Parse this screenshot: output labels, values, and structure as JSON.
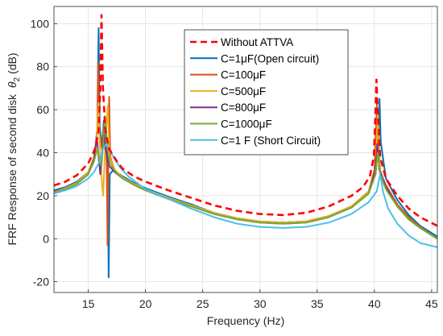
{
  "chart_data": {
    "type": "line",
    "xlabel": "Frequency (Hz)",
    "ylabel": "FRF Response of second disk",
    "ylabel_symbol": "θ",
    "ylabel_sub": "2",
    "ylabel_unit": "(dB)",
    "xlim": [
      12,
      45.5
    ],
    "ylim": [
      -25,
      108
    ],
    "xticks": [
      "15",
      "20",
      "25",
      "30",
      "35",
      "40",
      "45"
    ],
    "yticks": [
      "-20",
      "0",
      "20",
      "40",
      "60",
      "80",
      "100"
    ],
    "grid": true,
    "legend_position": "top-right",
    "series": [
      {
        "name": "Without ATTVA",
        "color": "#ff0000",
        "dashed": true,
        "points": [
          [
            12,
            24.8
          ],
          [
            13,
            26.5
          ],
          [
            14,
            29.5
          ],
          [
            15,
            35
          ],
          [
            15.6,
            42
          ],
          [
            15.9,
            50
          ],
          [
            16.05,
            70
          ],
          [
            16.15,
            104
          ],
          [
            16.28,
            70
          ],
          [
            16.5,
            50
          ],
          [
            16.8,
            42
          ],
          [
            17.5,
            36
          ],
          [
            18,
            32.5
          ],
          [
            19,
            29
          ],
          [
            20,
            26.5
          ],
          [
            22,
            22.5
          ],
          [
            24,
            19
          ],
          [
            26,
            15.5
          ],
          [
            28,
            13
          ],
          [
            30,
            11.5
          ],
          [
            32,
            11
          ],
          [
            34,
            12
          ],
          [
            36,
            15
          ],
          [
            38,
            20
          ],
          [
            39,
            24
          ],
          [
            39.6,
            29
          ],
          [
            39.95,
            38
          ],
          [
            40.1,
            60
          ],
          [
            40.18,
            74
          ],
          [
            40.28,
            60
          ],
          [
            40.5,
            38
          ],
          [
            41,
            28
          ],
          [
            42,
            20
          ],
          [
            43,
            14
          ],
          [
            44,
            10
          ],
          [
            45.5,
            6
          ]
        ]
      },
      {
        "name": "C=1μF(Open circuit)",
        "color": "#0072bd",
        "dashed": false,
        "points": [
          [
            12,
            22.5
          ],
          [
            13,
            24
          ],
          [
            14,
            26.5
          ],
          [
            15,
            31
          ],
          [
            15.5,
            37
          ],
          [
            15.8,
            52
          ],
          [
            15.9,
            98
          ],
          [
            16.0,
            52
          ],
          [
            16.2,
            44
          ],
          [
            16.4,
            46
          ],
          [
            16.55,
            52
          ],
          [
            16.7,
            30
          ],
          [
            16.78,
            -18
          ],
          [
            16.88,
            30
          ],
          [
            17.2,
            32
          ],
          [
            18,
            29
          ],
          [
            19,
            26
          ],
          [
            20,
            23.5
          ],
          [
            22,
            19.5
          ],
          [
            24,
            16
          ],
          [
            26,
            12
          ],
          [
            28,
            9.5
          ],
          [
            30,
            8
          ],
          [
            32,
            7.5
          ],
          [
            34,
            8
          ],
          [
            36,
            10.5
          ],
          [
            38,
            15
          ],
          [
            39.5,
            22
          ],
          [
            40.1,
            30
          ],
          [
            40.35,
            45
          ],
          [
            40.45,
            65
          ],
          [
            40.55,
            45
          ],
          [
            41,
            28
          ],
          [
            42,
            18
          ],
          [
            43,
            11
          ],
          [
            44,
            6
          ],
          [
            45.5,
            1
          ]
        ]
      },
      {
        "name": "C=100μF",
        "color": "#d95319",
        "dashed": false,
        "points": [
          [
            12,
            21.8
          ],
          [
            13,
            23.5
          ],
          [
            14,
            26
          ],
          [
            15,
            30.5
          ],
          [
            15.5,
            36
          ],
          [
            15.78,
            50
          ],
          [
            15.85,
            82
          ],
          [
            15.95,
            50
          ],
          [
            16.2,
            42
          ],
          [
            16.4,
            44
          ],
          [
            16.55,
            48
          ],
          [
            16.62,
            30
          ],
          [
            16.68,
            -3
          ],
          [
            16.75,
            30
          ],
          [
            16.82,
            66
          ],
          [
            16.92,
            38
          ],
          [
            17.3,
            32
          ],
          [
            18,
            28.5
          ],
          [
            19,
            25.5
          ],
          [
            20,
            23
          ],
          [
            22,
            19
          ],
          [
            24,
            15.5
          ],
          [
            26,
            12
          ],
          [
            28,
            9.5
          ],
          [
            30,
            8
          ],
          [
            32,
            7.5
          ],
          [
            34,
            8
          ],
          [
            36,
            10.5
          ],
          [
            38,
            15
          ],
          [
            39.5,
            22
          ],
          [
            40.0,
            32
          ],
          [
            40.22,
            63
          ],
          [
            40.42,
            32
          ],
          [
            41,
            25
          ],
          [
            42,
            16
          ],
          [
            43,
            10
          ],
          [
            44,
            5.5
          ],
          [
            45.5,
            0
          ]
        ]
      },
      {
        "name": "C=500μF",
        "color": "#edb120",
        "dashed": false,
        "points": [
          [
            12,
            21.5
          ],
          [
            13,
            23.5
          ],
          [
            14,
            26
          ],
          [
            15,
            31
          ],
          [
            15.5,
            38
          ],
          [
            15.75,
            48
          ],
          [
            15.88,
            63
          ],
          [
            16.0,
            45
          ],
          [
            16.2,
            25
          ],
          [
            16.3,
            20
          ],
          [
            16.42,
            36
          ],
          [
            16.55,
            50
          ],
          [
            16.7,
            62
          ],
          [
            16.85,
            38
          ],
          [
            17.3,
            32
          ],
          [
            18,
            28.5
          ],
          [
            19,
            25.5
          ],
          [
            20,
            23
          ],
          [
            22,
            19
          ],
          [
            24,
            15.5
          ],
          [
            26,
            12
          ],
          [
            28,
            9.5
          ],
          [
            30,
            8
          ],
          [
            32,
            7.5
          ],
          [
            34,
            8
          ],
          [
            36,
            10.5
          ],
          [
            38,
            15
          ],
          [
            39.5,
            22
          ],
          [
            40.1,
            32
          ],
          [
            40.3,
            58
          ],
          [
            40.5,
            32
          ],
          [
            41,
            24
          ],
          [
            42,
            15
          ],
          [
            43,
            9
          ],
          [
            44,
            5
          ],
          [
            45.5,
            0
          ]
        ]
      },
      {
        "name": "C=800μF",
        "color": "#7e2f8e",
        "dashed": false,
        "points": [
          [
            12,
            21.5
          ],
          [
            13,
            23
          ],
          [
            14,
            25.5
          ],
          [
            15,
            30
          ],
          [
            15.5,
            37
          ],
          [
            15.75,
            47
          ],
          [
            15.9,
            38
          ],
          [
            16.05,
            30
          ],
          [
            16.2,
            38
          ],
          [
            16.35,
            55
          ],
          [
            16.5,
            42
          ],
          [
            16.8,
            34
          ],
          [
            17.3,
            31
          ],
          [
            18,
            28
          ],
          [
            19,
            25
          ],
          [
            20,
            22.5
          ],
          [
            22,
            18.5
          ],
          [
            24,
            15
          ],
          [
            26,
            11.5
          ],
          [
            28,
            9
          ],
          [
            30,
            7.5
          ],
          [
            32,
            7
          ],
          [
            34,
            7.5
          ],
          [
            36,
            10
          ],
          [
            38,
            14.5
          ],
          [
            39.5,
            21
          ],
          [
            40.1,
            32
          ],
          [
            40.25,
            44
          ],
          [
            40.45,
            32
          ],
          [
            41,
            24
          ],
          [
            42,
            15
          ],
          [
            43,
            9
          ],
          [
            44,
            5
          ],
          [
            45.5,
            0
          ]
        ]
      },
      {
        "name": "C=1000μF",
        "color": "#77ac30",
        "dashed": false,
        "points": [
          [
            12,
            21.5
          ],
          [
            13,
            23
          ],
          [
            14,
            25.5
          ],
          [
            15,
            30
          ],
          [
            15.5,
            36
          ],
          [
            15.8,
            42
          ],
          [
            16.0,
            36
          ],
          [
            16.15,
            34
          ],
          [
            16.3,
            44
          ],
          [
            16.45,
            57
          ],
          [
            16.6,
            44
          ],
          [
            16.9,
            35
          ],
          [
            17.4,
            31
          ],
          [
            18,
            28
          ],
          [
            19,
            25
          ],
          [
            20,
            22.5
          ],
          [
            22,
            18.5
          ],
          [
            24,
            15
          ],
          [
            26,
            11.5
          ],
          [
            28,
            9
          ],
          [
            30,
            7.5
          ],
          [
            32,
            7
          ],
          [
            34,
            7.5
          ],
          [
            36,
            10
          ],
          [
            38,
            14.5
          ],
          [
            39.5,
            21
          ],
          [
            40.1,
            30
          ],
          [
            40.3,
            40
          ],
          [
            40.5,
            30
          ],
          [
            41,
            23
          ],
          [
            42,
            15
          ],
          [
            43,
            9
          ],
          [
            44,
            5
          ],
          [
            45.5,
            0
          ]
        ]
      },
      {
        "name": "C=1 F (Short Circuit)",
        "color": "#4dbeee",
        "dashed": false,
        "points": [
          [
            12,
            21
          ],
          [
            13,
            22.5
          ],
          [
            14,
            24.5
          ],
          [
            15,
            28
          ],
          [
            15.5,
            31
          ],
          [
            16.0,
            36
          ],
          [
            16.3,
            42
          ],
          [
            16.55,
            44
          ],
          [
            16.8,
            42
          ],
          [
            17.2,
            38
          ],
          [
            17.8,
            33
          ],
          [
            18.5,
            29
          ],
          [
            19.5,
            25
          ],
          [
            20,
            23
          ],
          [
            22,
            18.5
          ],
          [
            24,
            14
          ],
          [
            26,
            10
          ],
          [
            28,
            7
          ],
          [
            30,
            5.5
          ],
          [
            32,
            5
          ],
          [
            34,
            5.5
          ],
          [
            36,
            7.5
          ],
          [
            38,
            11.5
          ],
          [
            39.5,
            17
          ],
          [
            40.2,
            22
          ],
          [
            40.5,
            30
          ],
          [
            40.75,
            22
          ],
          [
            41.2,
            14
          ],
          [
            42,
            7
          ],
          [
            43,
            1.5
          ],
          [
            44,
            -2
          ],
          [
            45.5,
            -4
          ]
        ]
      }
    ]
  }
}
